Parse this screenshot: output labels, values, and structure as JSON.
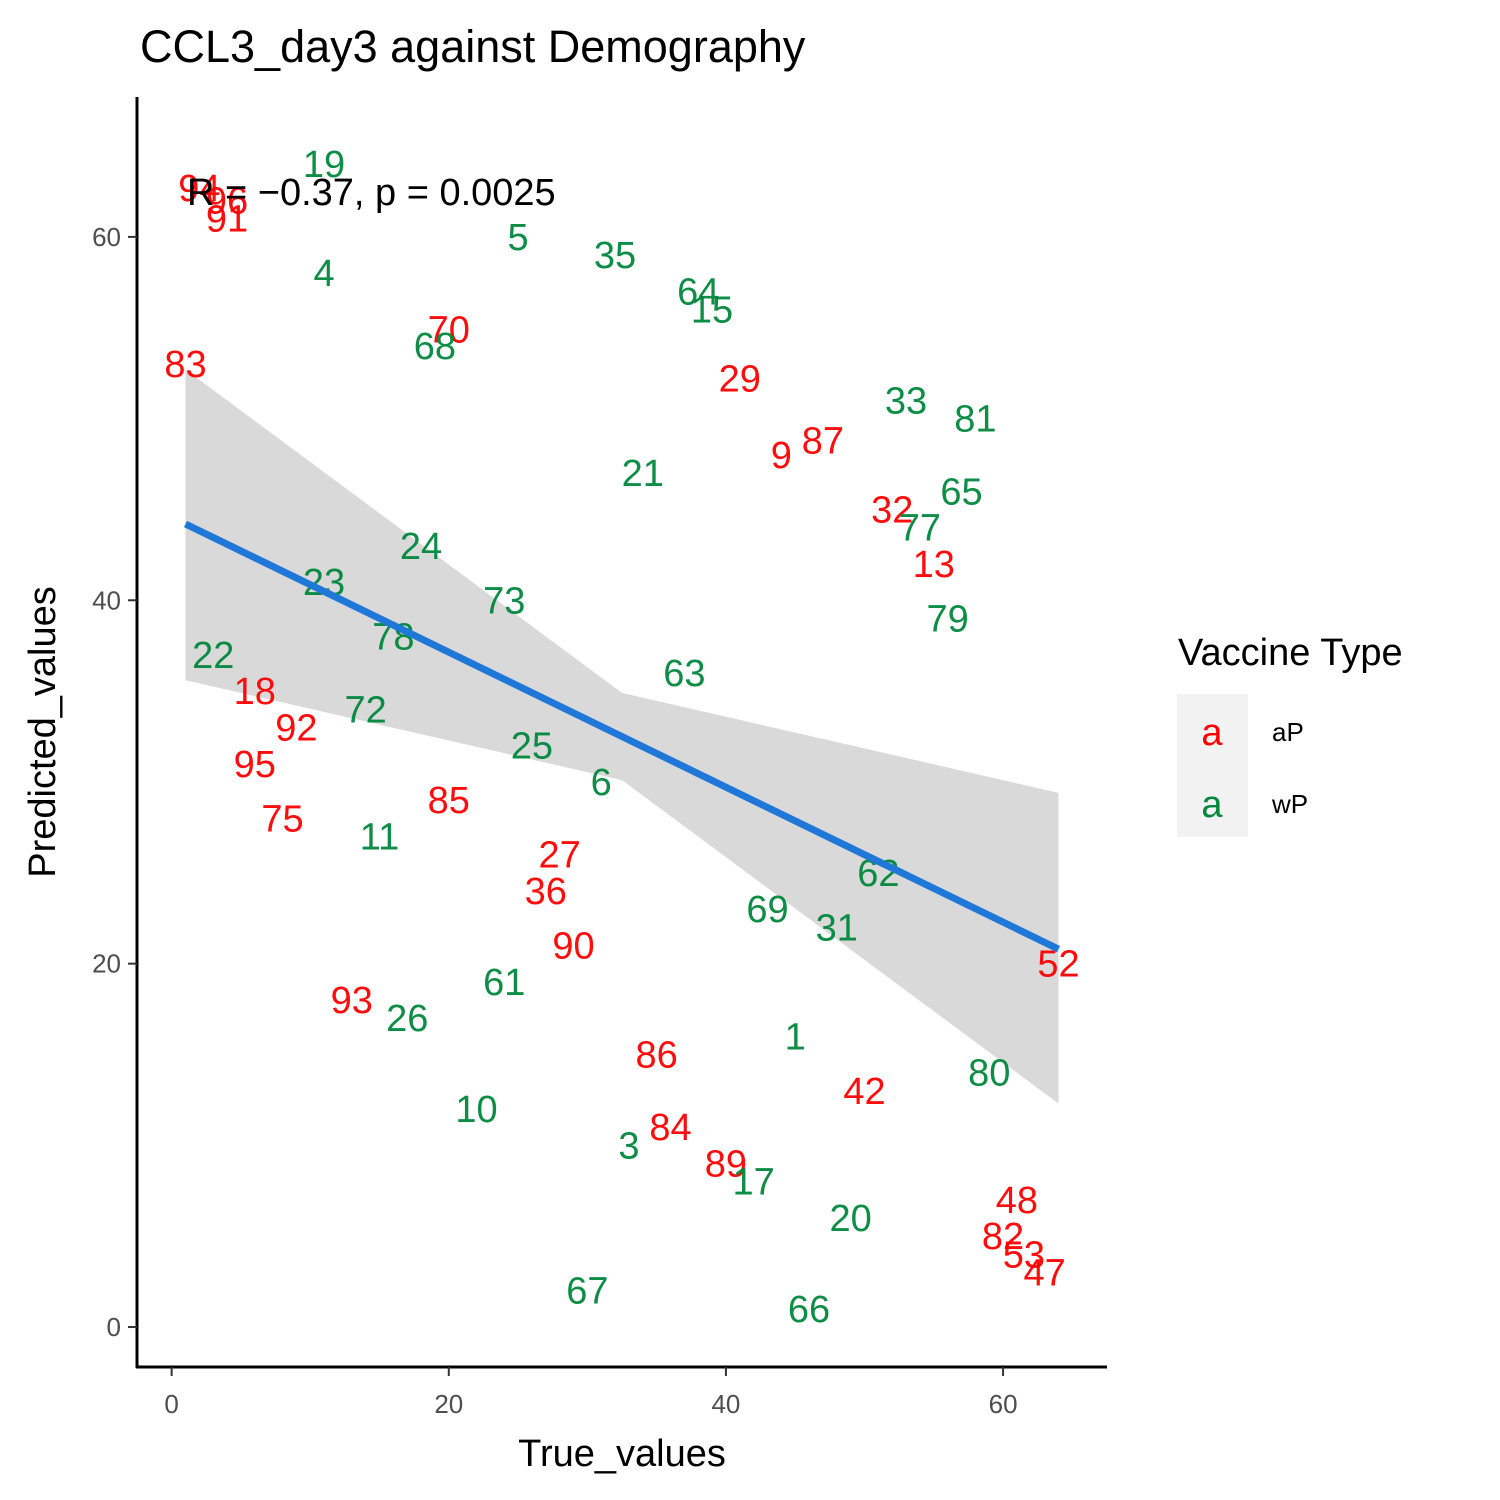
{
  "chart_data": {
    "type": "scatter",
    "title": "CCL3_day3 against Demography",
    "xlabel": "True_values",
    "ylabel": "Predicted_values",
    "xlim": [
      -2.5,
      67.5
    ],
    "ylim": [
      -2.2,
      67.7
    ],
    "x_ticks": [
      0,
      20,
      40,
      60
    ],
    "y_ticks": [
      0,
      20,
      40,
      60
    ],
    "grid": false,
    "annotation": "R = −0.37, p = 0.0025",
    "legend": {
      "title": "Vaccine Type",
      "placement": "right",
      "key_glyph": "a",
      "entries": [
        {
          "name": "aP",
          "color": "#ff0000"
        },
        {
          "name": "wP",
          "color": "#00873c"
        }
      ]
    },
    "series": [
      {
        "name": "aP",
        "color": "#ff0000",
        "points": [
          {
            "x": 1.0,
            "y": 53.0,
            "label": "83"
          },
          {
            "x": 2.0,
            "y": 62.7,
            "label": "94"
          },
          {
            "x": 4.0,
            "y": 62.0,
            "label": "96"
          },
          {
            "x": 4.0,
            "y": 61.0,
            "label": "91"
          },
          {
            "x": 20.0,
            "y": 54.9,
            "label": "70"
          },
          {
            "x": 41.0,
            "y": 52.2,
            "label": "29"
          },
          {
            "x": 44.0,
            "y": 48.0,
            "label": "9"
          },
          {
            "x": 47.0,
            "y": 48.8,
            "label": "87"
          },
          {
            "x": 52.0,
            "y": 45.0,
            "label": "32"
          },
          {
            "x": 55.0,
            "y": 42.0,
            "label": "13"
          },
          {
            "x": 6.0,
            "y": 35.0,
            "label": "18"
          },
          {
            "x": 9.0,
            "y": 33.0,
            "label": "92"
          },
          {
            "x": 6.0,
            "y": 31.0,
            "label": "95"
          },
          {
            "x": 8.0,
            "y": 28.0,
            "label": "75"
          },
          {
            "x": 20.0,
            "y": 29.0,
            "label": "85"
          },
          {
            "x": 28.0,
            "y": 26.0,
            "label": "27"
          },
          {
            "x": 27.0,
            "y": 24.0,
            "label": "36"
          },
          {
            "x": 29.0,
            "y": 21.0,
            "label": "90"
          },
          {
            "x": 13.0,
            "y": 18.0,
            "label": "93"
          },
          {
            "x": 35.0,
            "y": 15.0,
            "label": "86"
          },
          {
            "x": 50.0,
            "y": 13.0,
            "label": "42"
          },
          {
            "x": 36.0,
            "y": 11.0,
            "label": "84"
          },
          {
            "x": 40.0,
            "y": 9.0,
            "label": "89"
          },
          {
            "x": 64.0,
            "y": 20.0,
            "label": "52"
          },
          {
            "x": 61.0,
            "y": 7.0,
            "label": "48"
          },
          {
            "x": 60.0,
            "y": 5.0,
            "label": "82"
          },
          {
            "x": 61.5,
            "y": 4.0,
            "label": "53"
          },
          {
            "x": 63.0,
            "y": 3.0,
            "label": "47"
          }
        ]
      },
      {
        "name": "wP",
        "color": "#00873c",
        "points": [
          {
            "x": 11.0,
            "y": 64.0,
            "label": "19"
          },
          {
            "x": 25.0,
            "y": 60.0,
            "label": "5"
          },
          {
            "x": 11.0,
            "y": 58.0,
            "label": "4"
          },
          {
            "x": 32.0,
            "y": 59.0,
            "label": "35"
          },
          {
            "x": 38.0,
            "y": 57.0,
            "label": "64"
          },
          {
            "x": 39.0,
            "y": 56.0,
            "label": "15"
          },
          {
            "x": 19.0,
            "y": 54.0,
            "label": "68"
          },
          {
            "x": 53.0,
            "y": 51.0,
            "label": "33"
          },
          {
            "x": 58.0,
            "y": 50.0,
            "label": "81"
          },
          {
            "x": 34.0,
            "y": 47.0,
            "label": "21"
          },
          {
            "x": 57.0,
            "y": 46.0,
            "label": "65"
          },
          {
            "x": 54.0,
            "y": 44.0,
            "label": "77"
          },
          {
            "x": 18.0,
            "y": 43.0,
            "label": "24"
          },
          {
            "x": 11.0,
            "y": 41.0,
            "label": "23"
          },
          {
            "x": 24.0,
            "y": 40.0,
            "label": "73"
          },
          {
            "x": 56.0,
            "y": 39.0,
            "label": "79"
          },
          {
            "x": 16.0,
            "y": 38.0,
            "label": "78"
          },
          {
            "x": 3.0,
            "y": 37.0,
            "label": "22"
          },
          {
            "x": 37.0,
            "y": 36.0,
            "label": "63"
          },
          {
            "x": 14.0,
            "y": 34.0,
            "label": "72"
          },
          {
            "x": 26.0,
            "y": 32.0,
            "label": "25"
          },
          {
            "x": 31.0,
            "y": 30.0,
            "label": "6"
          },
          {
            "x": 15.0,
            "y": 27.0,
            "label": "11"
          },
          {
            "x": 51.0,
            "y": 25.0,
            "label": "62"
          },
          {
            "x": 43.0,
            "y": 23.0,
            "label": "69"
          },
          {
            "x": 48.0,
            "y": 22.0,
            "label": "31"
          },
          {
            "x": 24.0,
            "y": 19.0,
            "label": "61"
          },
          {
            "x": 17.0,
            "y": 17.0,
            "label": "26"
          },
          {
            "x": 45.0,
            "y": 16.0,
            "label": "1"
          },
          {
            "x": 59.0,
            "y": 14.0,
            "label": "80"
          },
          {
            "x": 22.0,
            "y": 12.0,
            "label": "10"
          },
          {
            "x": 33.0,
            "y": 10.0,
            "label": "3"
          },
          {
            "x": 42.0,
            "y": 8.0,
            "label": "17"
          },
          {
            "x": 49.0,
            "y": 6.0,
            "label": "20"
          },
          {
            "x": 30.0,
            "y": 2.0,
            "label": "67"
          },
          {
            "x": 46.0,
            "y": 1.0,
            "label": "66"
          }
        ]
      }
    ],
    "regression": {
      "color": "#1f77d8",
      "x_range": [
        1.0,
        64.0
      ],
      "y_range": [
        44.2,
        20.8
      ],
      "ci_color": "#d9d9d9",
      "ci_upper": [
        [
          1.0,
          52.7
        ],
        [
          32.5,
          34.9
        ],
        [
          64.0,
          29.4
        ]
      ],
      "ci_lower": [
        [
          1.0,
          35.6
        ],
        [
          32.5,
          30.1
        ],
        [
          64.0,
          12.3
        ]
      ]
    }
  }
}
